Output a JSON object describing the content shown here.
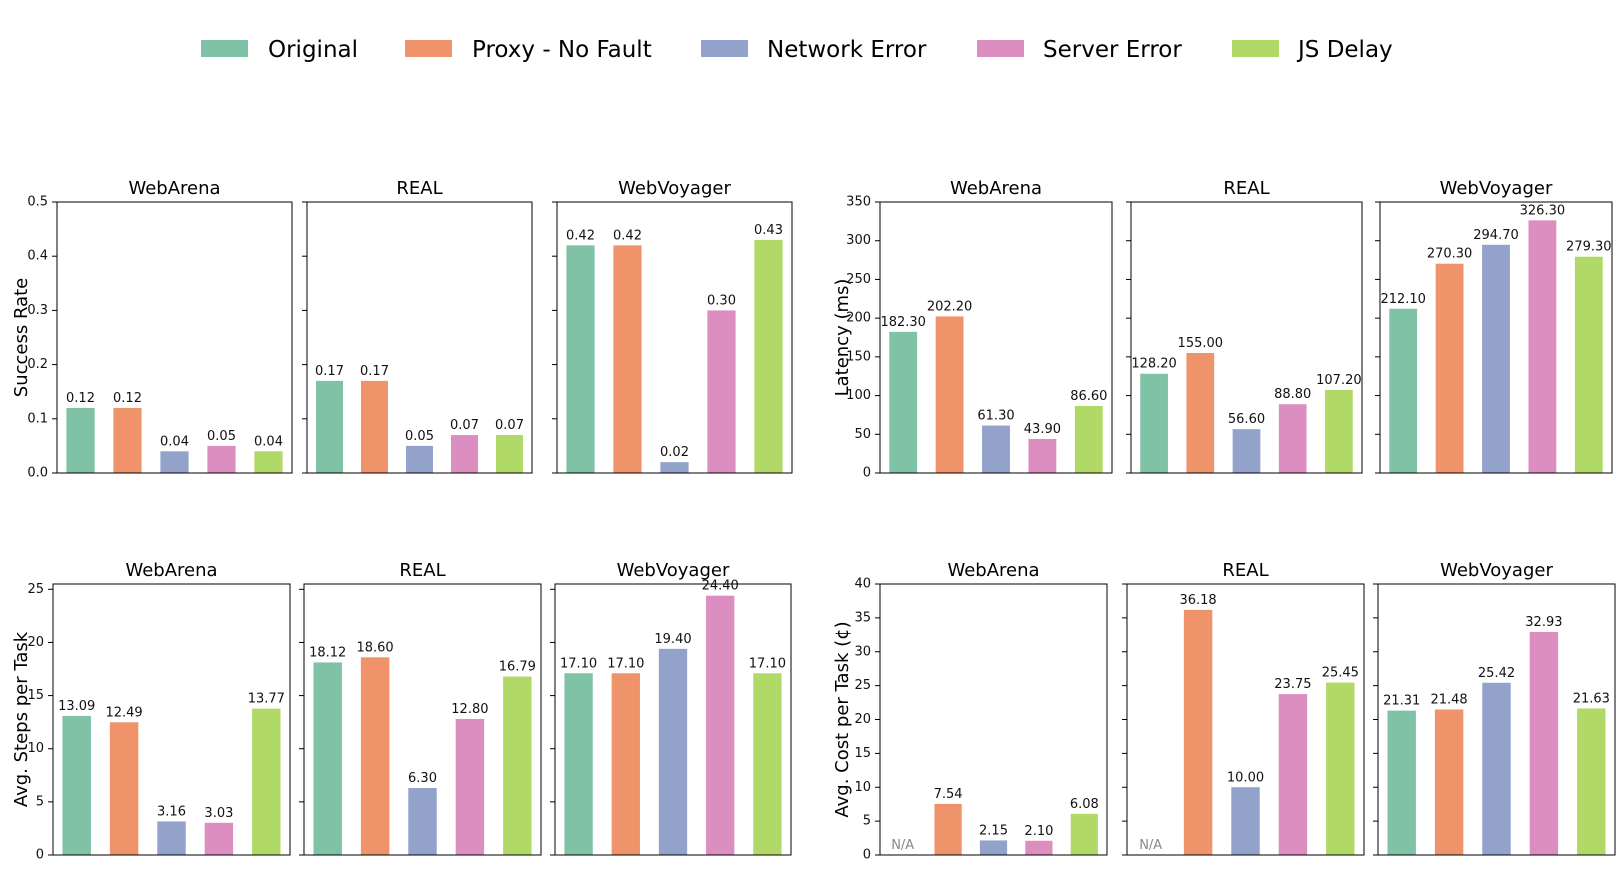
{
  "legend": [
    {
      "label": "Original",
      "color": "#7fc2a5"
    },
    {
      "label": "Proxy - No Fault",
      "color": "#ef936a"
    },
    {
      "label": "Network Error",
      "color": "#93a2cb"
    },
    {
      "label": "Server Error",
      "color": "#dd8ec1"
    },
    {
      "label": "JS Delay",
      "color": "#b0d968"
    }
  ],
  "chart_data": [
    {
      "type": "bar",
      "ylabel": "Success Rate",
      "ylim": [
        0,
        0.5
      ],
      "yticks": [
        "0.0",
        "0.1",
        "0.2",
        "0.3",
        "0.4",
        "0.5"
      ],
      "categories": [
        "Original",
        "Proxy - No Fault",
        "Network Error",
        "Server Error",
        "JS Delay"
      ],
      "panels": [
        {
          "title": "WebArena",
          "values": [
            0.12,
            0.12,
            0.04,
            0.05,
            0.04
          ],
          "labels": [
            "0.12",
            "0.12",
            "0.04",
            "0.05",
            "0.04"
          ]
        },
        {
          "title": "REAL",
          "values": [
            0.17,
            0.17,
            0.05,
            0.07,
            0.07
          ],
          "labels": [
            "0.17",
            "0.17",
            "0.05",
            "0.07",
            "0.07"
          ]
        },
        {
          "title": "WebVoyager",
          "values": [
            0.42,
            0.42,
            0.02,
            0.3,
            0.43
          ],
          "labels": [
            "0.42",
            "0.42",
            "0.02",
            "0.30",
            "0.43"
          ]
        }
      ]
    },
    {
      "type": "bar",
      "ylabel": "Latency (ms)",
      "ylim": [
        0,
        350
      ],
      "yticks": [
        "0",
        "50",
        "100",
        "150",
        "200",
        "250",
        "300",
        "350"
      ],
      "categories": [
        "Original",
        "Proxy - No Fault",
        "Network Error",
        "Server Error",
        "JS Delay"
      ],
      "panels": [
        {
          "title": "WebArena",
          "values": [
            182.3,
            202.2,
            61.3,
            43.9,
            86.6
          ],
          "labels": [
            "182.30",
            "202.20",
            "61.30",
            "43.90",
            "86.60"
          ]
        },
        {
          "title": "REAL",
          "values": [
            128.2,
            155.0,
            56.6,
            88.8,
            107.2
          ],
          "labels": [
            "128.20",
            "155.00",
            "56.60",
            "88.80",
            "107.20"
          ]
        },
        {
          "title": "WebVoyager",
          "values": [
            212.1,
            270.3,
            294.7,
            326.3,
            279.3
          ],
          "labels": [
            "212.10",
            "270.30",
            "294.70",
            "326.30",
            "279.30"
          ]
        }
      ]
    },
    {
      "type": "bar",
      "ylabel": "Avg. Steps per Task",
      "ylim": [
        0,
        25.5
      ],
      "yticks": [
        "0",
        "5",
        "10",
        "15",
        "20",
        "25"
      ],
      "categories": [
        "Original",
        "Proxy - No Fault",
        "Network Error",
        "Server Error",
        "JS Delay"
      ],
      "panels": [
        {
          "title": "WebArena",
          "values": [
            13.09,
            12.49,
            3.16,
            3.03,
            13.77
          ],
          "labels": [
            "13.09",
            "12.49",
            "3.16",
            "3.03",
            "13.77"
          ]
        },
        {
          "title": "REAL",
          "values": [
            18.12,
            18.6,
            6.3,
            12.8,
            16.79
          ],
          "labels": [
            "18.12",
            "18.60",
            "6.30",
            "12.80",
            "16.79"
          ]
        },
        {
          "title": "WebVoyager",
          "values": [
            17.1,
            17.1,
            19.4,
            24.4,
            17.1
          ],
          "labels": [
            "17.10",
            "17.10",
            "19.40",
            "24.40",
            "17.10"
          ]
        }
      ]
    },
    {
      "type": "bar",
      "ylabel": "Avg. Cost per Task (¢)",
      "ylim": [
        0,
        40
      ],
      "yticks": [
        "0",
        "5",
        "10",
        "15",
        "20",
        "25",
        "30",
        "35",
        "40"
      ],
      "categories": [
        "Original",
        "Proxy - No Fault",
        "Network Error",
        "Server Error",
        "JS Delay"
      ],
      "panels": [
        {
          "title": "WebArena",
          "values": [
            null,
            7.54,
            2.15,
            2.1,
            6.08
          ],
          "labels": [
            "N/A",
            "7.54",
            "2.15",
            "2.10",
            "6.08"
          ]
        },
        {
          "title": "REAL",
          "values": [
            null,
            36.18,
            10.0,
            23.75,
            25.45
          ],
          "labels": [
            "N/A",
            "36.18",
            "10.00",
            "23.75",
            "25.45"
          ]
        },
        {
          "title": "WebVoyager",
          "values": [
            21.31,
            21.48,
            25.42,
            32.93,
            21.63
          ],
          "labels": [
            "21.31",
            "21.48",
            "25.42",
            "32.93",
            "21.63"
          ]
        }
      ]
    }
  ]
}
